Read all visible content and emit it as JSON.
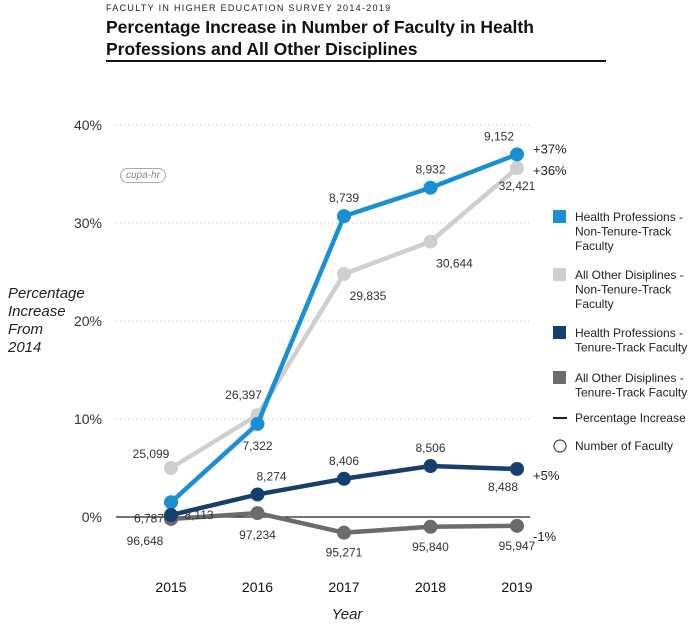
{
  "header": {
    "kicker": "FACULTY IN HIGHER EDUCATION SURVEY 2014-2019",
    "title": "Percentage Increase in Number of Faculty in Health Professions and All Other Disciplines"
  },
  "logo_text": "cupa-hr",
  "chart_data": {
    "type": "line",
    "categories": [
      "2015",
      "2016",
      "2017",
      "2018",
      "2019"
    ],
    "xlabel": "Year",
    "ylabel": [
      "Percentage",
      "Increase",
      "From",
      "2014"
    ],
    "ylim": [
      0,
      40
    ],
    "yticks": [
      "0%",
      "10%",
      "20%",
      "30%",
      "40%"
    ],
    "grid": "horizontal dotted",
    "legend_position": "right",
    "series": [
      {
        "name": "Health Professions - Non-Tenure-Track Faculty",
        "legend_lines": [
          "Health Professions -",
          "Non-Tenure-Track",
          "Faculty"
        ],
        "color": "#1a8fd6",
        "values": [
          1.5,
          9.5,
          30.7,
          33.6,
          37.0
        ],
        "labels": [
          "6,787",
          "7,322",
          "8,739",
          "8,932",
          "9,152"
        ],
        "end_label": "+37%"
      },
      {
        "name": "All Other Disciplines - Non-Tenure-Track Faculty",
        "legend_lines": [
          "All Other Disiplines -",
          "Non-Tenure-Track",
          "Faculty"
        ],
        "color": "#cfcfcf",
        "values": [
          5.0,
          10.4,
          24.8,
          28.1,
          35.6
        ],
        "labels": [
          "25,099",
          "26,397",
          "29,835",
          "30,644",
          "32,421"
        ],
        "end_label": "+36%"
      },
      {
        "name": "Health Professions - Tenure-Track Faculty",
        "legend_lines": [
          "Health Professions -",
          "Tenure-Track Faculty"
        ],
        "color": "#173f6e",
        "values": [
          0.2,
          2.3,
          3.9,
          5.2,
          4.9
        ],
        "labels": [
          "8,113",
          "8,274",
          "8,406",
          "8,506",
          "8,488"
        ],
        "end_label": "+5%"
      },
      {
        "name": "All Other Disciplines - Tenure-Track Faculty",
        "legend_lines": [
          "All Other Disiplines -",
          "Tenure-Track Faculty"
        ],
        "color": "#6b6b6b",
        "values": [
          -0.2,
          0.4,
          -1.6,
          -1.0,
          -0.9
        ],
        "labels": [
          "96,648",
          "97,234",
          "95,271",
          "95,840",
          "95,947"
        ],
        "end_label": "-1%"
      }
    ],
    "legend_extras": [
      "Percentage Increase",
      "Number of Faculty"
    ]
  }
}
